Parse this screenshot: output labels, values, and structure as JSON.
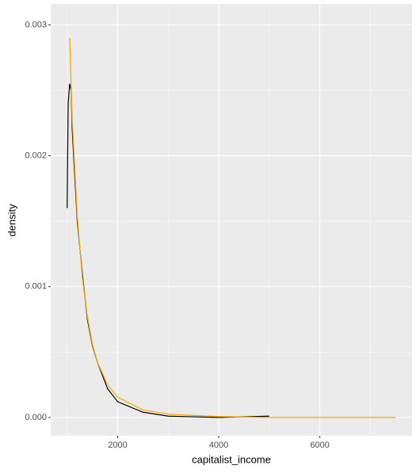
{
  "chart_data": {
    "type": "line",
    "x_label": "capitalist_income",
    "y_label": "density",
    "xlim": [
      675,
      7825
    ],
    "ylim": [
      -0.00014,
      0.00316
    ],
    "xticks": [
      2000,
      4000,
      6000
    ],
    "yticks": [
      {
        "value": 0,
        "label": "0.000"
      },
      {
        "value": 0.001,
        "label": "0.001"
      },
      {
        "value": 0.002,
        "label": "0.002"
      },
      {
        "value": 0.003,
        "label": "0.003"
      }
    ],
    "grid": true,
    "series": [
      {
        "color": "#000000",
        "x": [
          1000,
          1020,
          1050,
          1080,
          1100,
          1200,
          1300,
          1400,
          1500,
          1600,
          1800,
          2000,
          2500,
          3000,
          4000,
          5000
        ],
        "values": [
          0.0016,
          0.0024,
          0.00255,
          0.0025,
          0.0022,
          0.0015,
          0.0011,
          0.00075,
          0.00055,
          0.00042,
          0.00022,
          0.00012,
          4e-05,
          1e-05,
          0,
          1e-05
        ]
      },
      {
        "color": "#ffa500",
        "x": [
          1050,
          1100,
          1200,
          1300,
          1400,
          1500,
          1600,
          1800,
          2000,
          2500,
          3000,
          4000,
          5000,
          6000,
          7500
        ],
        "values": [
          0.0029,
          0.00228,
          0.00154,
          0.00107,
          0.00077,
          0.00056,
          0.00042,
          0.00025,
          0.000155,
          5.7e-05,
          2.5e-05,
          6.8e-06,
          0,
          0,
          0
        ]
      }
    ]
  }
}
